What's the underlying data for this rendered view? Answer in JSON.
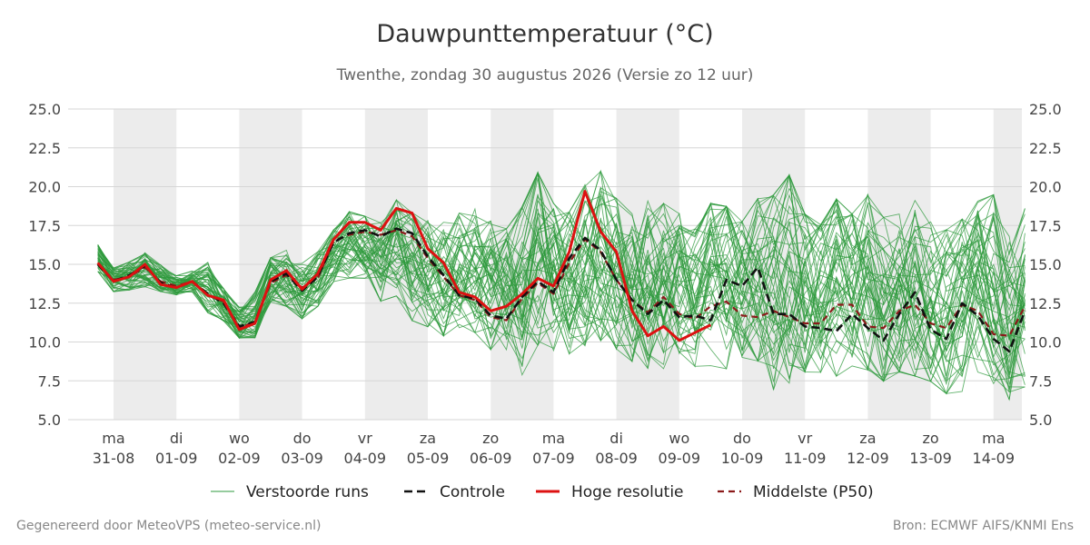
{
  "title": "Dauwpunttemperatuur (°C)",
  "subtitle": "Twenthe, zondag 30 augustus 2026 (Versie zo 12 uur)",
  "footer": {
    "left": "Gegenereerd door MeteoVPS (meteo-service.nl)",
    "right": "Bron: ECMWF AIFS/KNMI Ens"
  },
  "colors": {
    "ensemble": "#2e9a3c",
    "control": "#111111",
    "hires": "#dd1111",
    "median": "#8b1a1a",
    "weekend_band": "#ececec"
  },
  "chart_data": {
    "type": "line",
    "title": "Dauwpunttemperatuur (°C)",
    "ylim": [
      5.0,
      25.0
    ],
    "yticks": [
      "5.0",
      "7.5",
      "10.0",
      "12.5",
      "15.0",
      "17.5",
      "20.0",
      "22.5",
      "25.0"
    ],
    "x_unit": "dag vanaf 31-08 (elke 6 uur)",
    "days": [
      {
        "weekday": "ma",
        "date": "31-08"
      },
      {
        "weekday": "di",
        "date": "01-09"
      },
      {
        "weekday": "wo",
        "date": "02-09"
      },
      {
        "weekday": "do",
        "date": "03-09"
      },
      {
        "weekday": "vr",
        "date": "04-09"
      },
      {
        "weekday": "za",
        "date": "05-09"
      },
      {
        "weekday": "zo",
        "date": "06-09"
      },
      {
        "weekday": "ma",
        "date": "07-09"
      },
      {
        "weekday": "di",
        "date": "08-09"
      },
      {
        "weekday": "wo",
        "date": "09-09"
      },
      {
        "weekday": "do",
        "date": "10-09"
      },
      {
        "weekday": "vr",
        "date": "11-09"
      },
      {
        "weekday": "za",
        "date": "12-09"
      },
      {
        "weekday": "zo",
        "date": "13-09"
      },
      {
        "weekday": "ma",
        "date": "14-09"
      }
    ],
    "legend": [
      {
        "key": "ensemble",
        "label": "Verstoorde runs",
        "style": "thin"
      },
      {
        "key": "control",
        "label": "Controle",
        "style": "dashed"
      },
      {
        "key": "hires",
        "label": "Hoge resolutie",
        "style": "solid"
      },
      {
        "key": "median",
        "label": "Middelste (P50)",
        "style": "dashed"
      }
    ],
    "series": [
      {
        "key": "hires",
        "x_start": -0.25,
        "step": 0.25,
        "values": [
          15.1,
          13.9,
          14.2,
          15.0,
          13.7,
          13.5,
          13.9,
          13.0,
          12.7,
          10.8,
          11.2,
          14.0,
          14.6,
          13.4,
          14.4,
          16.6,
          17.7,
          17.7,
          17.2,
          18.6,
          18.3,
          16.0,
          15.1,
          13.2,
          12.9,
          12.0,
          12.3,
          13.1,
          14.1,
          13.6,
          15.8,
          19.7,
          17.1,
          15.8,
          12.0,
          10.4,
          11.0,
          10.1,
          10.6,
          11.1
        ]
      },
      {
        "key": "control",
        "x_start": -0.25,
        "step": 0.25,
        "values": [
          15.0,
          13.9,
          14.3,
          14.9,
          13.8,
          13.5,
          13.9,
          13.1,
          12.5,
          11.0,
          11.3,
          13.9,
          14.4,
          13.3,
          14.2,
          16.4,
          17.0,
          17.2,
          16.8,
          17.3,
          17.0,
          15.5,
          14.3,
          13.0,
          12.8,
          11.7,
          11.5,
          12.9,
          13.9,
          13.2,
          15.4,
          16.7,
          15.9,
          14.0,
          12.7,
          11.8,
          12.7,
          11.6,
          11.7,
          11.4,
          14.0,
          13.6,
          14.8,
          11.8,
          11.8,
          11.0,
          10.9,
          10.7,
          11.8,
          10.9,
          10.1,
          11.8,
          13.2,
          10.8,
          10.2,
          12.5,
          11.7,
          10.2,
          9.4,
          12.0
        ]
      },
      {
        "key": "median",
        "x_start": -0.25,
        "step": 0.25,
        "values": [
          15.0,
          14.0,
          14.2,
          14.8,
          13.9,
          13.6,
          13.9,
          13.0,
          12.6,
          10.9,
          11.3,
          13.8,
          14.3,
          13.5,
          14.1,
          16.5,
          16.9,
          17.1,
          16.9,
          17.2,
          16.8,
          15.4,
          14.2,
          13.0,
          12.7,
          11.6,
          11.4,
          12.8,
          13.8,
          13.1,
          15.1,
          16.6,
          15.8,
          14.0,
          12.7,
          11.9,
          12.9,
          11.8,
          11.5,
          12.3,
          12.6,
          11.7,
          11.6,
          12.0,
          11.6,
          11.2,
          11.2,
          12.4,
          12.4,
          11.0,
          10.9,
          12.0,
          12.4,
          11.2,
          10.9,
          12.4,
          12.0,
          10.5,
          10.4,
          12.3
        ]
      }
    ],
    "ensemble": {
      "members": 50,
      "x_start": -0.25,
      "step": 0.25,
      "min": [
        14.5,
        13.2,
        13.3,
        13.5,
        13.2,
        13.0,
        13.2,
        11.8,
        11.3,
        10.2,
        10.2,
        12.5,
        12.2,
        11.4,
        12.2,
        13.8,
        14.0,
        14.0,
        12.5,
        12.8,
        11.2,
        10.8,
        10.2,
        10.5,
        10.4,
        9.3,
        9.3,
        7.5,
        9.5,
        9.2,
        9.0,
        9.5,
        9.8,
        9.3,
        8.5,
        8.0,
        8.0,
        8.8,
        8.2,
        8.2,
        8.0,
        7.8,
        8.5,
        6.6,
        7.0,
        7.8,
        7.8,
        7.5,
        8.2,
        7.9,
        7.2,
        7.8,
        7.5,
        7.2,
        6.4,
        6.5,
        7.5,
        7.0,
        6.0,
        6.8
      ],
      "max": [
        16.3,
        14.8,
        15.2,
        15.8,
        15.0,
        14.3,
        14.6,
        15.2,
        13.5,
        12.3,
        13.3,
        15.5,
        16.0,
        15.2,
        15.9,
        17.3,
        18.5,
        18.2,
        17.8,
        19.3,
        18.5,
        18.0,
        17.9,
        18.5,
        18.8,
        18.0,
        17.5,
        19.0,
        21.2,
        19.2,
        18.6,
        20.4,
        21.3,
        19.5,
        18.5,
        19.6,
        19.2,
        18.5,
        17.5,
        19.2,
        19.0,
        18.0,
        19.5,
        19.8,
        21.1,
        18.5,
        17.8,
        19.5,
        18.5,
        19.8,
        18.3,
        18.5,
        19.9,
        18.0,
        17.5,
        18.2,
        19.6,
        19.8,
        17.5,
        18.9
      ]
    }
  }
}
